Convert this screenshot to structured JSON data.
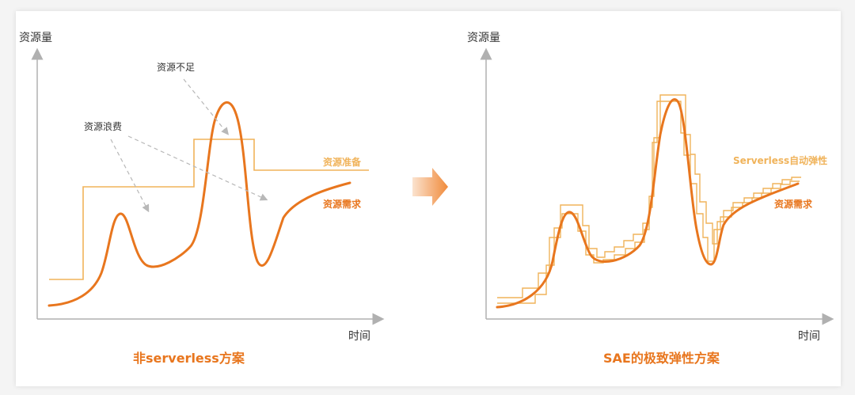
{
  "colors": {
    "demand": "#e8761e",
    "supply": "#f0b35a",
    "axis": "#b0b0b0",
    "arrow_dash": "#b8b8b8",
    "title": "#e8761e"
  },
  "left_panel": {
    "y_axis_label": "资源量",
    "x_axis_label": "时间",
    "annotation_waste": "资源浪费",
    "annotation_shortage": "资源不足",
    "legend_supply": "资源准备",
    "legend_demand": "资源需求",
    "title": "非serverless方案"
  },
  "right_panel": {
    "y_axis_label": "资源量",
    "x_axis_label": "时间",
    "legend_supply": "Serverless自动弹性",
    "legend_demand": "资源需求",
    "title": "SAE的极致弹性方案"
  },
  "center_arrow_icon": "arrow-right-icon"
}
